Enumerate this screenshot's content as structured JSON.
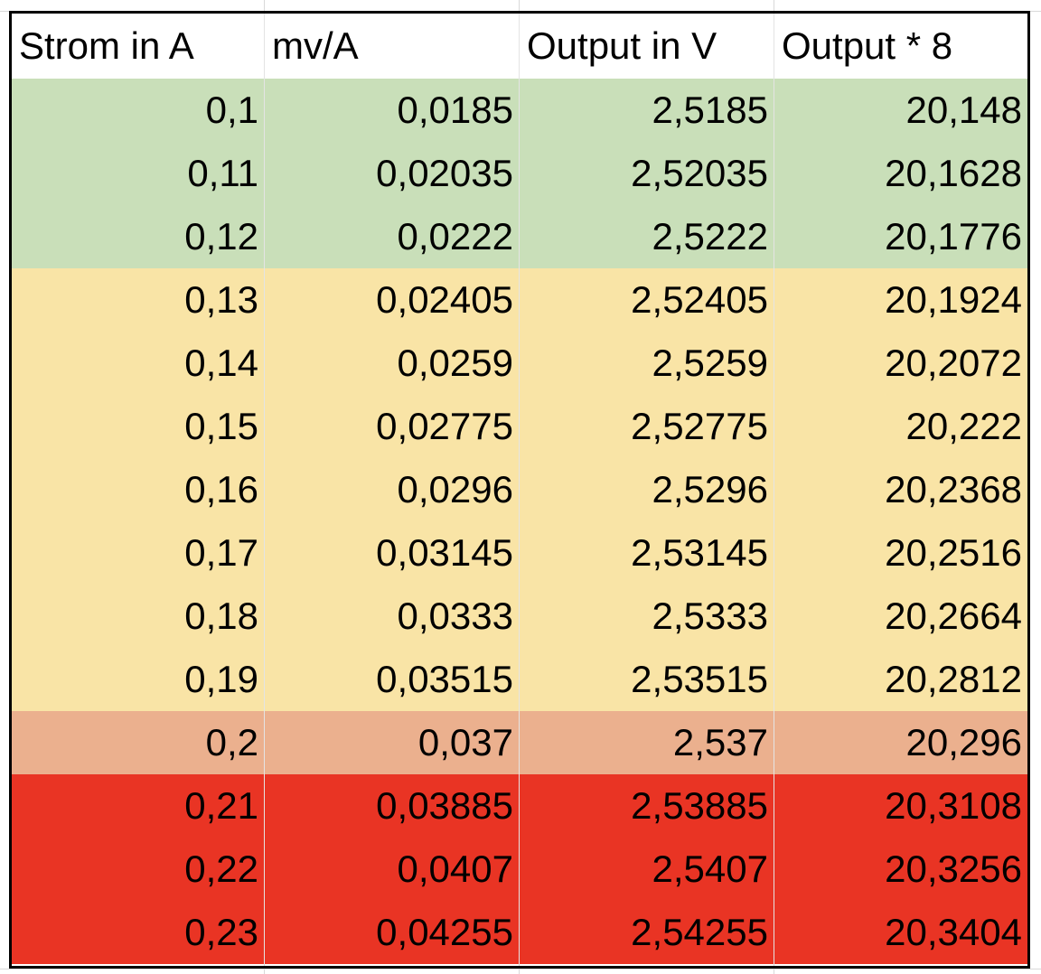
{
  "colors": {
    "green": "#c9dfb9",
    "yellow": "#f9e4a6",
    "orange": "#ebb08e",
    "red": "#e93424",
    "border": "#000000"
  },
  "table": {
    "headers": [
      "Strom in A",
      "mv/A",
      "Output in V",
      "Output * 8"
    ],
    "rows": [
      {
        "band": "green",
        "cells": [
          "0,1",
          "0,0185",
          "2,5185",
          "20,148"
        ]
      },
      {
        "band": "green",
        "cells": [
          "0,11",
          "0,02035",
          "2,52035",
          "20,1628"
        ]
      },
      {
        "band": "green",
        "cells": [
          "0,12",
          "0,0222",
          "2,5222",
          "20,1776"
        ]
      },
      {
        "band": "yellow",
        "cells": [
          "0,13",
          "0,02405",
          "2,52405",
          "20,1924"
        ]
      },
      {
        "band": "yellow",
        "cells": [
          "0,14",
          "0,0259",
          "2,5259",
          "20,2072"
        ]
      },
      {
        "band": "yellow",
        "cells": [
          "0,15",
          "0,02775",
          "2,52775",
          "20,222"
        ]
      },
      {
        "band": "yellow",
        "cells": [
          "0,16",
          "0,0296",
          "2,5296",
          "20,2368"
        ]
      },
      {
        "band": "yellow",
        "cells": [
          "0,17",
          "0,03145",
          "2,53145",
          "20,2516"
        ]
      },
      {
        "band": "yellow",
        "cells": [
          "0,18",
          "0,0333",
          "2,5333",
          "20,2664"
        ]
      },
      {
        "band": "yellow",
        "cells": [
          "0,19",
          "0,03515",
          "2,53515",
          "20,2812"
        ]
      },
      {
        "band": "orange",
        "cells": [
          "0,2",
          "0,037",
          "2,537",
          "20,296"
        ]
      },
      {
        "band": "red",
        "cells": [
          "0,21",
          "0,03885",
          "2,53885",
          "20,3108"
        ]
      },
      {
        "band": "red",
        "cells": [
          "0,22",
          "0,0407",
          "2,5407",
          "20,3256"
        ]
      },
      {
        "band": "red",
        "cells": [
          "0,23",
          "0,04255",
          "2,54255",
          "20,3404"
        ]
      }
    ]
  }
}
